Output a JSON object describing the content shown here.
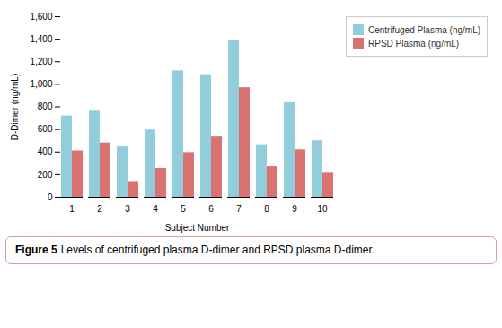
{
  "chart_data": {
    "type": "bar",
    "title": "Figure 5",
    "caption": "Levels of centrifuged plasma D-dimer and RPSD plasma D-dimer.",
    "xlabel": "Subject Number",
    "ylabel": "D-Dimer (ng/mL)",
    "categories": [
      "1",
      "2",
      "3",
      "4",
      "5",
      "6",
      "7",
      "8",
      "9",
      "10"
    ],
    "series": [
      {
        "name": "Centrifuged Plasma (ng/mL)",
        "color": "#92CDDC",
        "values": [
          720,
          770,
          445,
          595,
          1120,
          1085,
          1385,
          465,
          845,
          500
        ]
      },
      {
        "name": "RPSD Plasma (ng/mL)",
        "color": "#DA7272",
        "values": [
          410,
          480,
          140,
          255,
          395,
          540,
          970,
          270,
          420,
          220
        ]
      }
    ],
    "ylim": [
      0,
      1600
    ],
    "yticks": [
      0,
      200,
      400,
      600,
      800,
      1000,
      1200,
      1400,
      1600
    ],
    "grid": false,
    "legend": "right"
  }
}
